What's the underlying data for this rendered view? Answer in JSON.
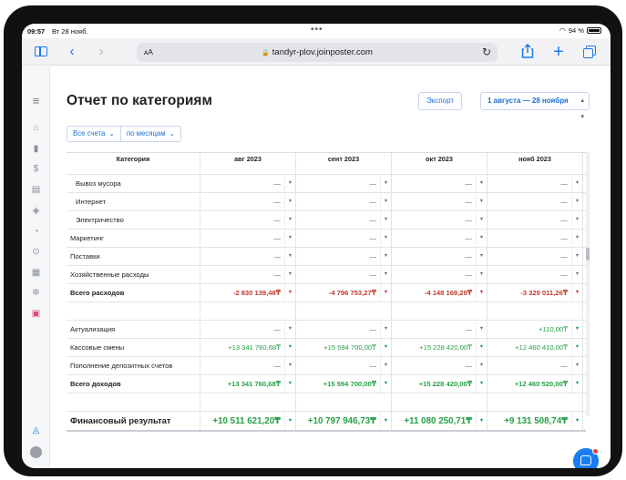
{
  "status": {
    "time": "09:57",
    "date": "Вт 28 нояб.",
    "battery": "94 %"
  },
  "browser": {
    "aa": "ᴀA",
    "url": "tandyr-plov.joinposter.com"
  },
  "page": {
    "title": "Отчет по категориям",
    "export_label": "Экспорт",
    "date_range": "1 августа — 28 ноября"
  },
  "filters": {
    "accounts": "Все счета",
    "period": "по месяцам"
  },
  "table": {
    "headers": [
      "Категория",
      "авг 2023",
      "сент 2023",
      "окт 2023",
      "нояб 2023"
    ],
    "rows": [
      {
        "label": "Вывоз мусора",
        "values": [
          "—",
          "—",
          "—",
          "—"
        ]
      },
      {
        "label": "Интернет",
        "values": [
          "—",
          "—",
          "—",
          "—"
        ]
      },
      {
        "label": "Электричество",
        "values": [
          "—",
          "—",
          "—",
          "—"
        ]
      },
      {
        "label": "Маркетинг",
        "values": [
          "—",
          "—",
          "—",
          "—"
        ]
      },
      {
        "label": "Поставки",
        "values": [
          "—",
          "—",
          "—",
          "—"
        ]
      },
      {
        "label": "Хозяйственные расходы",
        "values": [
          "—",
          "—",
          "—",
          "—"
        ]
      },
      {
        "label": "Всего расходов",
        "values": [
          "-2 830 139,48₸",
          "-4 796 753,27₸",
          "-4 148 169,29₸",
          "-3 329 011,26₸"
        ]
      },
      {
        "label": "Актуализация",
        "values": [
          "—",
          "—",
          "—",
          "+110,00₸"
        ]
      },
      {
        "label": "Кассовые смены",
        "values": [
          "+13 341 760,68₸",
          "+15 594 700,00₸",
          "+15 228 420,00₸",
          "+12 460 410,00₸"
        ]
      },
      {
        "label": "Пополнение депозитных счетов",
        "values": [
          "—",
          "—",
          "—",
          "—"
        ]
      },
      {
        "label": "Всего доходов",
        "values": [
          "+13 341 760,68₸",
          "+15 594 700,00₸",
          "+15 228 420,00₸",
          "+12 460 520,00₸"
        ]
      },
      {
        "label": "Финансовый результат",
        "values": [
          "+10 511 621,20₸",
          "+10 797 946,73₸",
          "+11 080 250,71₸",
          "+9 131 508,74₸"
        ]
      }
    ]
  },
  "colors": {
    "accent": "#1a7cf0",
    "negative": "#c0392b",
    "positive": "#27a047"
  }
}
